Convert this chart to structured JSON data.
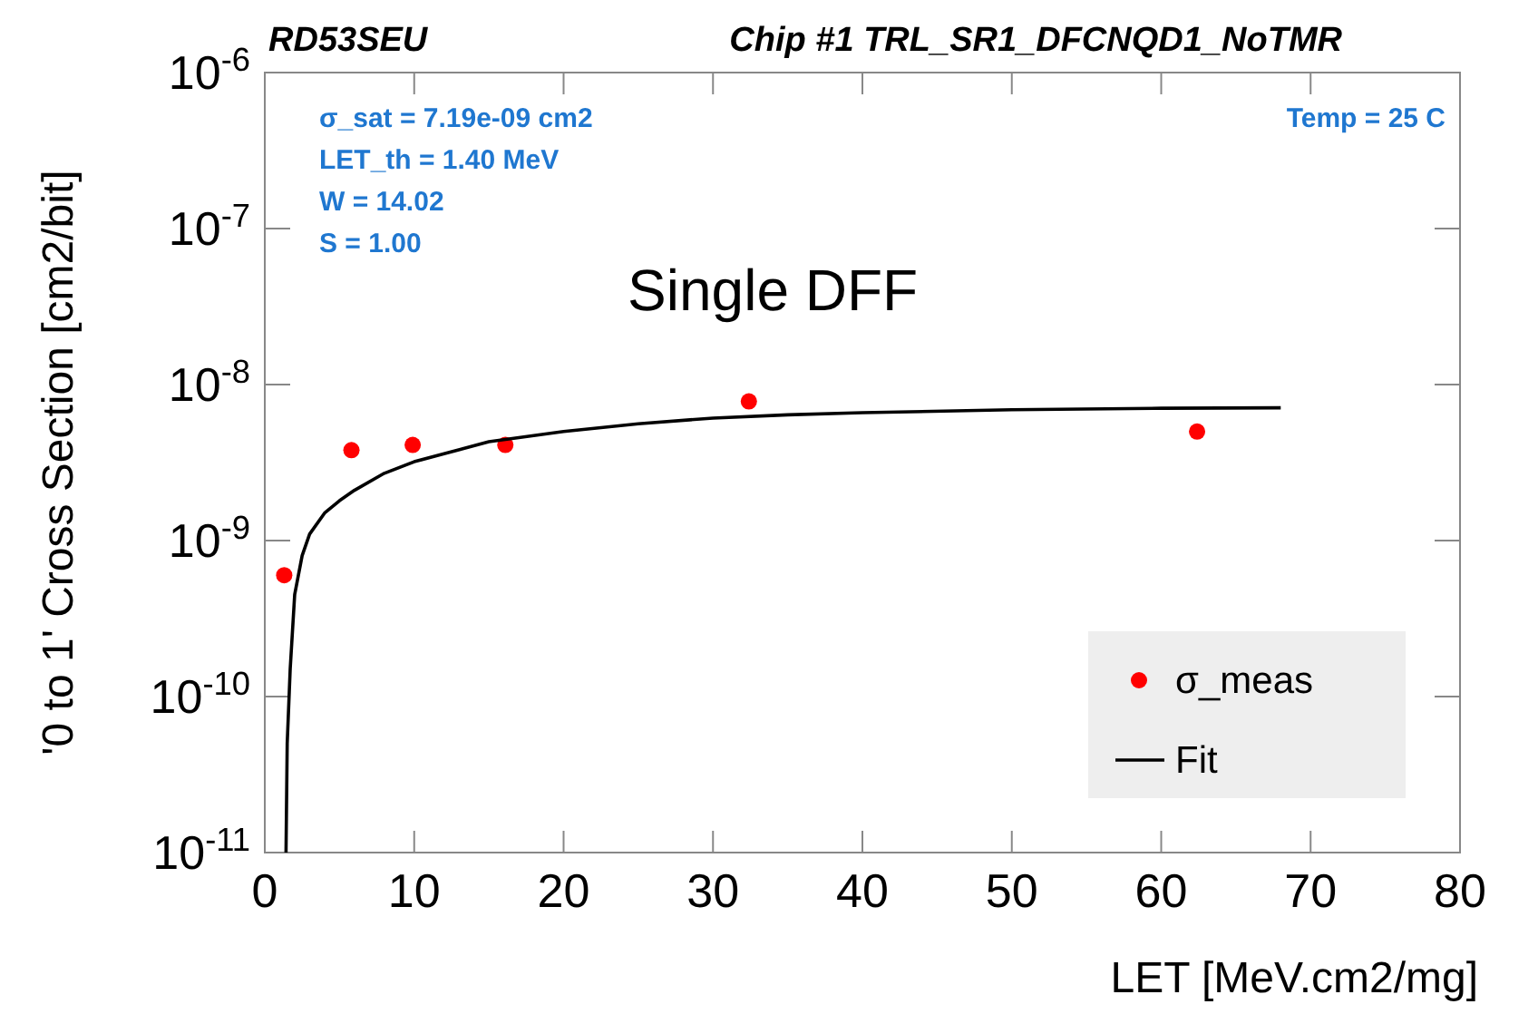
{
  "chart_data": {
    "type": "scatter",
    "title": "RD53SEU",
    "subtitle": "Chip #1 TRL_SR1_DFCNQD1_NoTMR",
    "xlabel": "LET [MeV.cm2/mg]",
    "ylabel": "'0 to 1'  Cross Section [cm2/bit]",
    "annotations": [
      "σ_sat = 7.19e-09 cm2",
      "LET_th = 1.40 MeV",
      "W = 14.02",
      "S = 1.00",
      "Temp = 25 C",
      "Single DFF"
    ],
    "log": "y",
    "grid": false,
    "legend": "bottom right",
    "xlim": [
      0,
      80
    ],
    "xticks": [
      0,
      10,
      20,
      30,
      40,
      50,
      60,
      70,
      80
    ],
    "ylim": [
      1e-11,
      1e-06
    ],
    "yticks": [
      {
        "value": 1e-11,
        "label": "10$^{-11}$"
      },
      {
        "value": 1e-10,
        "label": "10$^{-10}$"
      },
      {
        "value": 1e-09,
        "label": "10$^{-9}$"
      },
      {
        "value": 1e-08,
        "label": "10$^{-8}$"
      },
      {
        "value": 1e-07,
        "label": "10$^{-7}$"
      },
      {
        "value": 1e-06,
        "label": "10$^{-6}$"
      }
    ],
    "series": [
      {
        "name": "σ_meas",
        "marker": "circle",
        "color": "#ff0000",
        "x": [
          1.3,
          5.8,
          9.9,
          16.1,
          32.4,
          62.4
        ],
        "values": [
          6e-10,
          3.8e-09,
          4.1e-09,
          4.1e-09,
          7.8e-09,
          5e-09
        ]
      },
      {
        "name": "Fit",
        "type": "line",
        "marker": "none",
        "color": "#000000",
        "line_style": "solid",
        "x": [
          1.42,
          1.5,
          1.7,
          2,
          2.5,
          3,
          4,
          5,
          6,
          8,
          10,
          12,
          15,
          20,
          25,
          30,
          35,
          40,
          50,
          60,
          68
        ],
        "values": [
          1e-11,
          5e-11,
          1.5e-10,
          4.5e-10,
          8e-10,
          1.1e-09,
          1.5e-09,
          1.8e-09,
          2.1e-09,
          2.7e-09,
          3.2e-09,
          3.6e-09,
          4.3e-09,
          5e-09,
          5.6e-09,
          6.1e-09,
          6.4e-09,
          6.6e-09,
          6.9e-09,
          7.05e-09,
          7.1e-09
        ]
      }
    ]
  }
}
